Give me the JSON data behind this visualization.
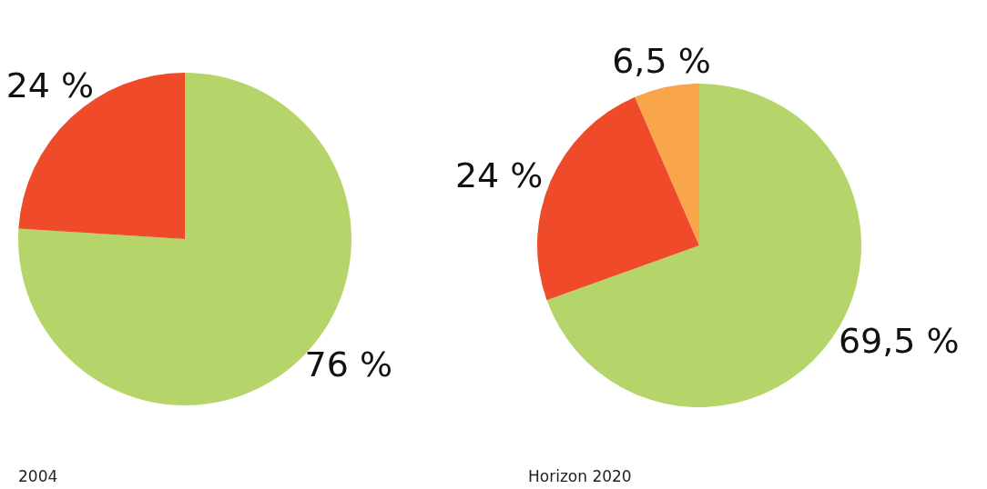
{
  "chart_data": [
    {
      "type": "pie",
      "title": "2004",
      "categories": [
        null,
        null
      ],
      "values": [
        76,
        24
      ],
      "colors": [
        "#b5d56a",
        "#ef4b2a"
      ],
      "value_labels": [
        "76 %",
        "24 %"
      ]
    },
    {
      "type": "pie",
      "title": "Horizon 2020",
      "categories": [
        null,
        null,
        null
      ],
      "values": [
        69.5,
        24,
        6.5
      ],
      "colors": [
        "#b5d56a",
        "#ef4b2a",
        "#f9a54a"
      ],
      "value_labels": [
        "69,5 %",
        "24 %",
        "6,5 %"
      ]
    }
  ]
}
